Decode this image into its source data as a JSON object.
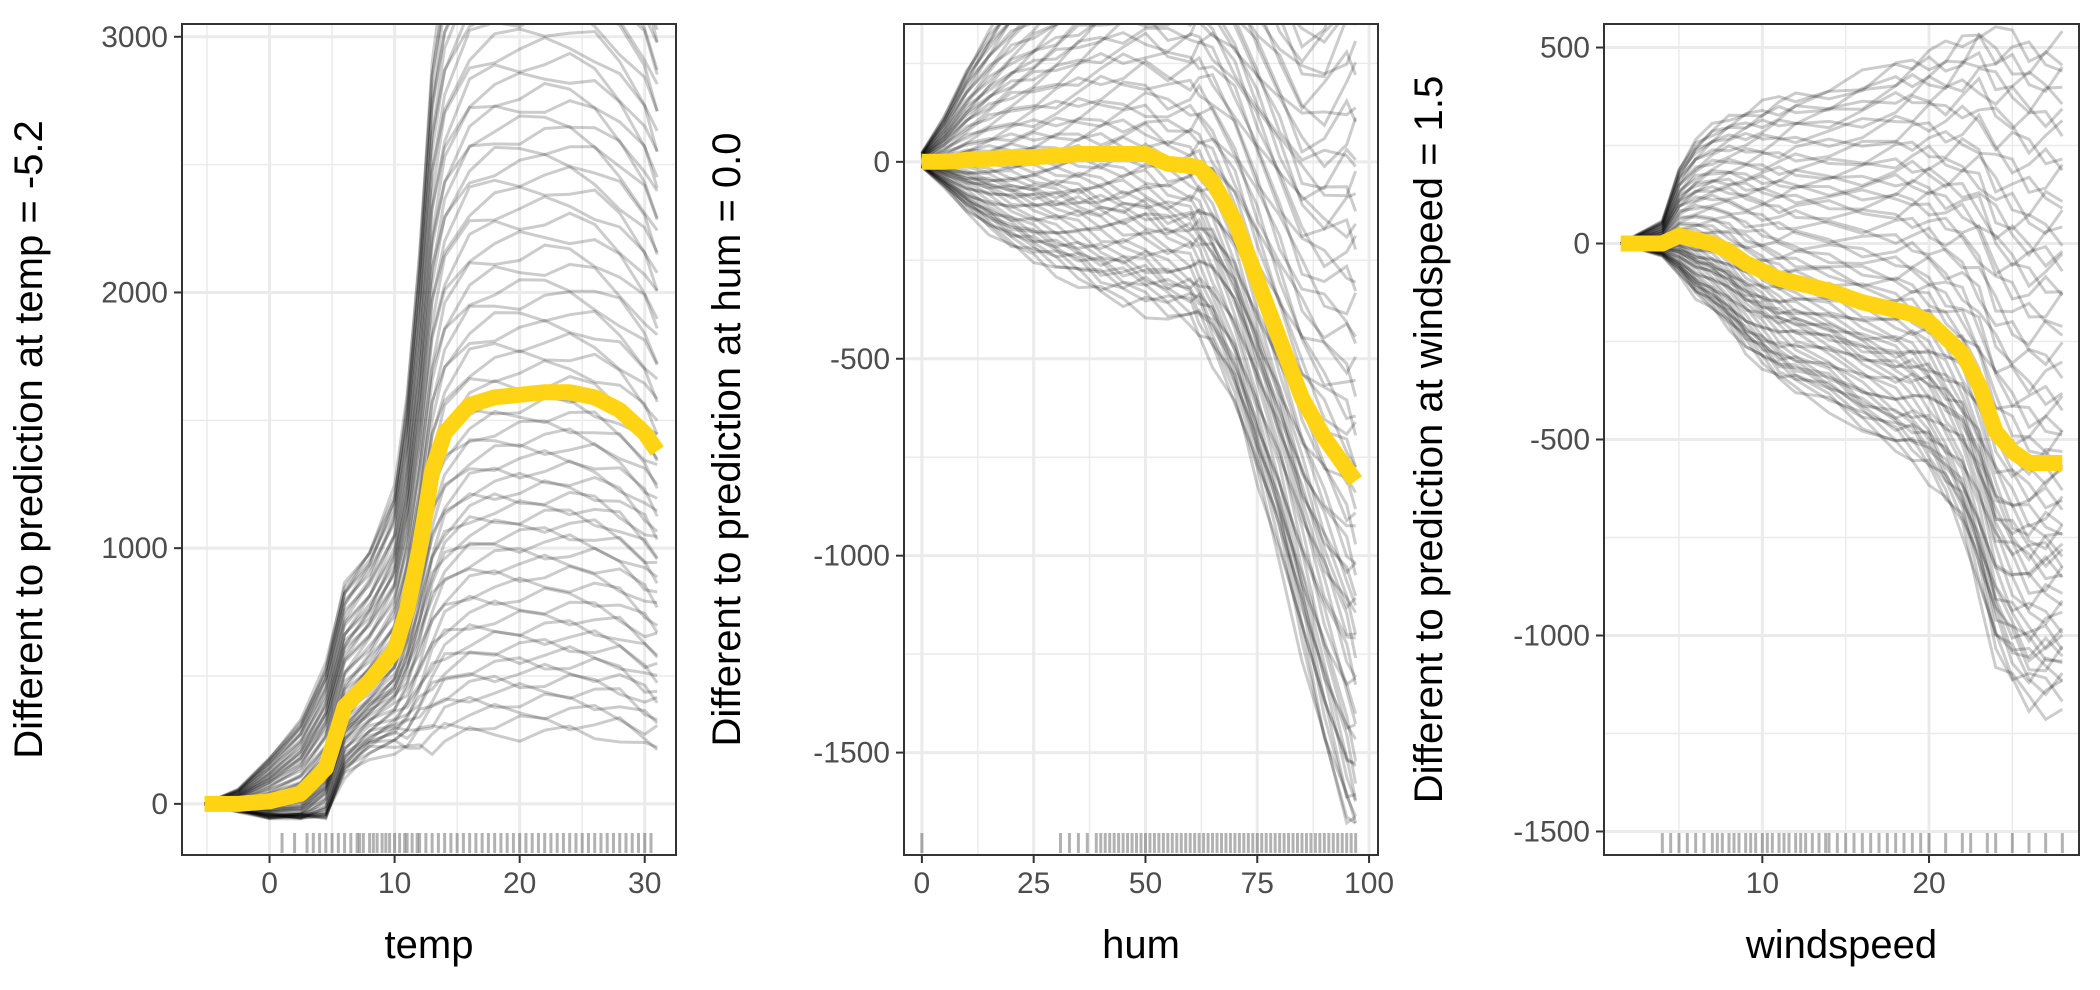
{
  "colors": {
    "pdp_line": "#FFD414",
    "ice_lines": "#000000",
    "grid": "#EBEBEB",
    "panel_border": "#333333"
  },
  "chart_data": [
    {
      "type": "line",
      "xlabel": "temp",
      "ylabel": "Different to prediction at temp = -5.2",
      "xlim": [
        -7,
        32.5
      ],
      "ylim": [
        -200,
        3050
      ],
      "x_ticks": [
        0,
        10,
        20,
        30
      ],
      "y_ticks": [
        0,
        1000,
        2000,
        3000
      ],
      "x_grid": [
        -5,
        0,
        5,
        10,
        15,
        20,
        25,
        30
      ],
      "y_grid": [
        0,
        500,
        1000,
        1500,
        2000,
        2500,
        3000
      ],
      "grid": true,
      "x": [
        -5.2,
        -2.5,
        0,
        2.5,
        4.5,
        6,
        8,
        10,
        11,
        12,
        13,
        14,
        16,
        18,
        20,
        22,
        24,
        26,
        28,
        30,
        31
      ],
      "pdp": [
        0,
        0,
        10,
        40,
        140,
        380,
        480,
        600,
        760,
        1000,
        1300,
        1450,
        1560,
        1590,
        1600,
        1610,
        1610,
        1590,
        1540,
        1450,
        1380
      ],
      "ice_count": 70,
      "ice_spread": [
        0,
        0.05,
        0.15,
        0.25,
        0.35,
        0.42,
        0.45,
        0.55,
        0.62,
        0.66,
        0.7,
        0.7,
        0.7,
        0.7,
        0.7,
        0.7,
        0.7,
        0.7,
        0.7,
        0.72,
        0.72
      ],
      "ice_min": -60,
      "rug": [
        1,
        2,
        3,
        3.5,
        4,
        4.5,
        5,
        5.5,
        6,
        6.5,
        7,
        7.2,
        7.5,
        8,
        8.3,
        8.6,
        9,
        9.3,
        9.6,
        10,
        10.4,
        10.8,
        11,
        11.4,
        11.8,
        12,
        12.5,
        13,
        13.5,
        14,
        14.5,
        15,
        15.5,
        16,
        16.5,
        17,
        17.5,
        18,
        18.5,
        19,
        19.5,
        20,
        20.5,
        21,
        21.5,
        22,
        22.5,
        23,
        23.5,
        24,
        24.5,
        25,
        25.5,
        26,
        26.5,
        27,
        27.5,
        28,
        28.5,
        29,
        29.5,
        30,
        30.5
      ]
    },
    {
      "type": "line",
      "xlabel": "hum",
      "ylabel": "Different to prediction at hum = 0.0",
      "xlim": [
        -4,
        102
      ],
      "ylim": [
        -1760,
        350
      ],
      "x_ticks": [
        0,
        25,
        50,
        75,
        100
      ],
      "y_ticks": [
        -1500,
        -1000,
        -500,
        0
      ],
      "x_grid": [
        0,
        12.5,
        25,
        37.5,
        50,
        62.5,
        75,
        87.5,
        100
      ],
      "y_grid": [
        -1500,
        -1250,
        -1000,
        -750,
        -500,
        -250,
        0,
        250
      ],
      "grid": true,
      "x": [
        0,
        5,
        10,
        15,
        20,
        25,
        30,
        35,
        40,
        45,
        50,
        55,
        60,
        62,
        65,
        70,
        75,
        80,
        85,
        90,
        95,
        97
      ],
      "pdp": [
        0,
        0,
        5,
        8,
        10,
        12,
        15,
        20,
        20,
        20,
        20,
        -5,
        -10,
        -15,
        -50,
        -150,
        -300,
        -450,
        -600,
        -700,
        -780,
        -810
      ],
      "ice_count": 70,
      "ice_spread": [
        0.02,
        0.1,
        0.2,
        0.28,
        0.35,
        0.4,
        0.45,
        0.5,
        0.55,
        0.58,
        0.6,
        0.6,
        0.62,
        0.65,
        0.68,
        0.72,
        0.78,
        0.84,
        0.9,
        0.95,
        1.0,
        1.0
      ],
      "ice_min": -1680,
      "rug": [
        0,
        31,
        33,
        35,
        37,
        39,
        40,
        41,
        42,
        43,
        44,
        45,
        46,
        47,
        48,
        49,
        50,
        51,
        52,
        53,
        54,
        55,
        56,
        57,
        58,
        59,
        60,
        61,
        62,
        63,
        64,
        65,
        66,
        67,
        68,
        69,
        70,
        71,
        72,
        73,
        74,
        75,
        76,
        77,
        78,
        79,
        80,
        81,
        82,
        83,
        84,
        85,
        86,
        87,
        88,
        89,
        90,
        91,
        92,
        93,
        94,
        95,
        96,
        97
      ]
    },
    {
      "type": "line",
      "xlabel": "windspeed",
      "ylabel": "Different to prediction at windspeed = 1.5",
      "xlim": [
        0.5,
        29
      ],
      "ylim": [
        -1560,
        560
      ],
      "x_ticks": [
        10,
        20
      ],
      "y_ticks": [
        -1500,
        -1000,
        -500,
        0,
        500
      ],
      "x_grid": [
        5,
        10,
        15,
        20,
        25
      ],
      "y_grid": [
        -1500,
        -1250,
        -1000,
        -750,
        -500,
        -250,
        0,
        250,
        500
      ],
      "grid": true,
      "x": [
        1.5,
        4,
        5,
        6,
        7,
        8,
        9,
        10,
        11,
        12,
        14,
        16,
        18,
        19,
        20,
        21,
        22,
        23,
        24,
        25,
        26,
        27,
        28
      ],
      "pdp": [
        0,
        0,
        20,
        10,
        0,
        -20,
        -50,
        -70,
        -90,
        -100,
        -120,
        -150,
        -170,
        -180,
        -200,
        -240,
        -280,
        -360,
        -480,
        -530,
        -560,
        -560,
        -560
      ],
      "ice_count": 70,
      "ice_spread": [
        0,
        0.05,
        0.15,
        0.22,
        0.26,
        0.3,
        0.34,
        0.37,
        0.4,
        0.42,
        0.45,
        0.5,
        0.55,
        0.57,
        0.6,
        0.64,
        0.7,
        0.8,
        0.88,
        0.92,
        0.93,
        0.93,
        0.93
      ],
      "ice_min": -1470,
      "rug": [
        4,
        4.5,
        5,
        5.5,
        6,
        6.5,
        7,
        7.3,
        7.6,
        8,
        8.3,
        8.6,
        9,
        9.3,
        9.6,
        10,
        10.3,
        10.6,
        11,
        11.3,
        11.6,
        12,
        12.3,
        12.6,
        13,
        13.4,
        13.8,
        14,
        14.5,
        15,
        15.5,
        16,
        16.5,
        17,
        17.5,
        18,
        18.5,
        19,
        19.5,
        20,
        21,
        22,
        22.5,
        23.5,
        24,
        25,
        26,
        27,
        28
      ]
    }
  ]
}
